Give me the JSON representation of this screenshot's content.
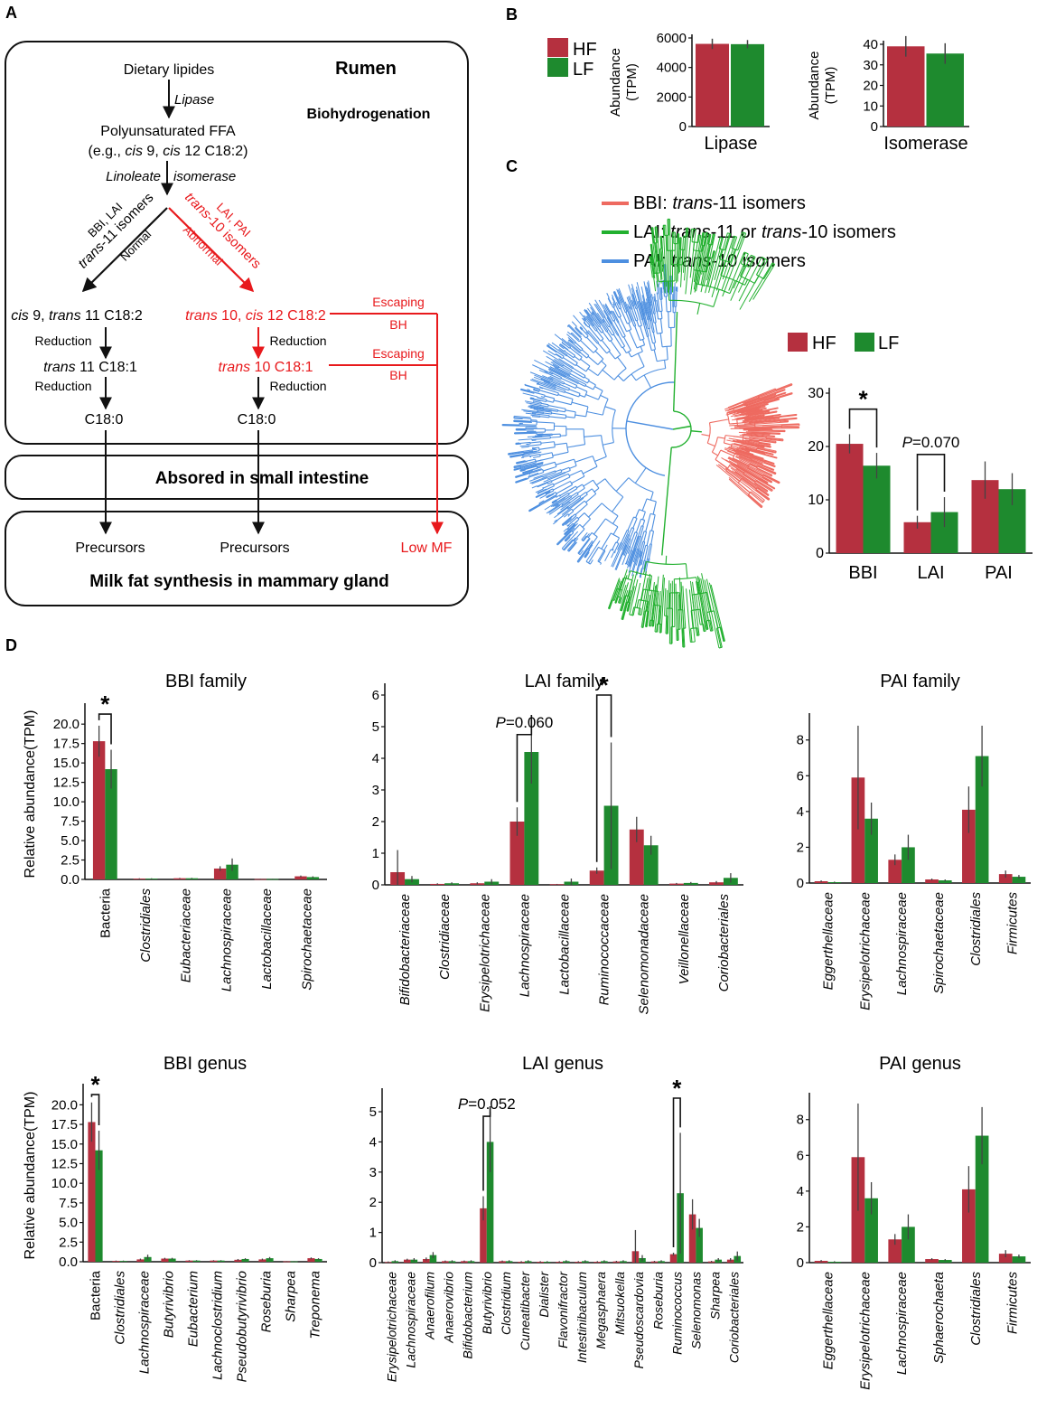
{
  "colors": {
    "hf": "#B5303F",
    "lf": "#1E8A2E",
    "red": "#E8191C",
    "black": "#111111",
    "bbi": "#EE6A60",
    "lai": "#22B02F",
    "pai": "#4D8FE0"
  },
  "panelA": {
    "label": "A",
    "rumen": "Rumen",
    "biohydrogenation": "Biohydrogenation",
    "dietary": "Dietary lipides",
    "lipase": "Lipase",
    "pufa": "Polyunsaturated FFA",
    "eg_pre": "(e.g., ",
    "eg_cis9": "cis",
    "eg_mid": " 9, ",
    "eg_cis12": "cis",
    "eg_post": " 12 C18:2)",
    "lin": "Linoleate",
    "iso": "isomerase",
    "bbi_lai": "BBI, LAI",
    "t11_trans": "trans",
    "t11_rest": "-11 isomers",
    "normal": "Normal",
    "lai_pai": "LAI, PAI",
    "t10_trans": "trans",
    "t10_rest": "-10 isomers",
    "abnormal": "Abnormal",
    "left_cis": "cis",
    "left_9": " 9, ",
    "left_trans": "trans",
    "left_11": " 11 C18:2",
    "right_trans": "trans",
    "right_10": " 10, ",
    "right_cis": "cis",
    "right_12": " 12 C18:2",
    "escaping1": "Escaping",
    "bh1": "BH",
    "escaping2": "Escaping",
    "bh2": "BH",
    "reduction1": "Reduction",
    "reduction2": "Reduction",
    "reduction3": "Reduction",
    "reduction4": "Reduction",
    "lt11_trans": "trans",
    "lt11_rest": " 11 C18:1",
    "rt10_trans": "trans",
    "rt10_rest": " 10 C18:1",
    "c180_left": "C18:0",
    "c180_right": "C18:0",
    "absorbed": "Absored in small intestine",
    "precursors1": "Precursors",
    "precursors2": "Precursors",
    "lowmf": "Low MF",
    "milkfat": "Milk fat synthesis in mammary gland"
  },
  "panelB": {
    "label": "B",
    "legend": [
      "HF",
      "LF"
    ],
    "charts": [
      {
        "ylabel1": "Abundance",
        "ylabel2": "(TPM)",
        "xlabel": "Lipase",
        "yticks": [
          0,
          2000,
          4000,
          6000
        ],
        "ymax": 6000,
        "values": [
          5600,
          5580
        ],
        "errors": [
          350,
          280
        ]
      },
      {
        "ylabel1": "Abundance",
        "ylabel2": "(TPM)",
        "xlabel": "Isomerase",
        "yticks": [
          0,
          10,
          20,
          30,
          40
        ],
        "ymax": 40,
        "values": [
          39,
          35.5
        ],
        "errors": [
          5,
          5
        ]
      }
    ]
  },
  "panelC": {
    "label": "C",
    "legend": [
      {
        "key": "BBI",
        "sep": ": ",
        "t1": "trans",
        "t2": "-11 isomers",
        "t3": "",
        "t4": "",
        "color": "#EE6A60"
      },
      {
        "key": "LAI",
        "sep": ": ",
        "t1": "trans",
        "t2": "-11 or ",
        "t3": "trans",
        "t4": "-10 isomers",
        "color": "#22B02F"
      },
      {
        "key": "PAI",
        "sep": ": ",
        "t1": "trans",
        "t2": "-10 isomers",
        "t3": "",
        "t4": "",
        "color": "#4D8FE0"
      }
    ],
    "bar_legend": [
      "HF",
      "LF"
    ]
  },
  "chart_data": [
    {
      "type": "bar",
      "panel": "B",
      "title": "",
      "categories": [
        "Lipase"
      ],
      "series": [
        {
          "name": "HF",
          "values": [
            5600
          ]
        },
        {
          "name": "LF",
          "values": [
            5580
          ]
        }
      ],
      "ylabel": "Abundance (TPM)",
      "ylim": [
        0,
        6000
      ]
    },
    {
      "type": "bar",
      "panel": "B",
      "title": "",
      "categories": [
        "Isomerase"
      ],
      "series": [
        {
          "name": "HF",
          "values": [
            39
          ]
        },
        {
          "name": "LF",
          "values": [
            35.5
          ]
        }
      ],
      "ylabel": "Abundance (TPM)",
      "ylim": [
        0,
        40
      ]
    },
    {
      "type": "bar",
      "panel": "C",
      "title": "",
      "categories": [
        "BBI",
        "LAI",
        "PAI"
      ],
      "series": [
        {
          "name": "HF",
          "values": [
            20.5,
            5.8,
            13.7
          ]
        },
        {
          "name": "LF",
          "values": [
            16.4,
            7.7,
            12
          ]
        }
      ],
      "errors": {
        "HF": [
          1.8,
          1.2,
          3.5
        ],
        "LF": [
          2.4,
          2.8,
          3
        ]
      },
      "yticks": [
        0,
        10,
        20,
        30
      ],
      "ylim": [
        0,
        30
      ],
      "annotations": [
        {
          "label": "*",
          "between": "BBI"
        },
        {
          "label": "=0.070",
          "prefix": "P",
          "between": "LAI"
        }
      ]
    },
    {
      "type": "bar",
      "panel": "D",
      "title": "BBI family",
      "ylabel": "Relative abundance(TPM)",
      "yticks": [
        0.0,
        2.5,
        5.0,
        7.5,
        10.0,
        12.5,
        15.0,
        17.5,
        20.0
      ],
      "ylim": [
        0,
        22
      ],
      "categories": [
        "Bacteria",
        "Clostridiales",
        "Eubacteriaceae",
        "Lachnospiraceae",
        "Lactobacillaceae",
        "Spirochaetaceae"
      ],
      "italic": [
        false,
        true,
        true,
        true,
        true,
        true
      ],
      "series": [
        {
          "name": "HF",
          "values": [
            17.8,
            0.1,
            0.15,
            1.4,
            0.05,
            0.4
          ]
        },
        {
          "name": "LF",
          "values": [
            14.2,
            0.1,
            0.15,
            1.9,
            0.05,
            0.3
          ]
        }
      ],
      "errors": {
        "HF": [
          2.0,
          0.05,
          0.05,
          0.3,
          0.02,
          0.1
        ],
        "LF": [
          2.5,
          0.05,
          0.05,
          0.8,
          0.02,
          0.1
        ]
      },
      "annotations": [
        {
          "label": "*",
          "category": 0
        }
      ]
    },
    {
      "type": "bar",
      "panel": "D",
      "title": "LAI family",
      "ylabel": "",
      "yticks": [
        0,
        1,
        2,
        3,
        4,
        5,
        6
      ],
      "ylim": [
        0,
        6.2
      ],
      "categories": [
        "Bifidobacteriaceae",
        "Clostridiaceae",
        "Erysipelotrichaceae",
        "Lachnospiraceae",
        "Lactobacillaceae",
        "Ruminococcaceae",
        "Selenomonadaceae",
        "Veillonellaceae",
        "Coriobacteriales"
      ],
      "italic": [
        true,
        true,
        true,
        true,
        true,
        true,
        true,
        true,
        true
      ],
      "series": [
        {
          "name": "HF",
          "values": [
            0.4,
            0.03,
            0.05,
            2.0,
            0.02,
            0.45,
            1.75,
            0.04,
            0.08
          ]
        },
        {
          "name": "LF",
          "values": [
            0.18,
            0.05,
            0.1,
            4.2,
            0.1,
            2.5,
            1.25,
            0.06,
            0.22
          ]
        }
      ],
      "errors": {
        "HF": [
          0.7,
          0.02,
          0.03,
          0.45,
          0.01,
          0.1,
          0.4,
          0.02,
          0.04
        ],
        "LF": [
          0.1,
          0.03,
          0.08,
          1.0,
          0.1,
          2.0,
          0.3,
          0.03,
          0.15
        ]
      },
      "annotations": [
        {
          "label": "=0.060",
          "prefix": "P",
          "category": 3
        },
        {
          "label": "*",
          "category": 5
        }
      ]
    },
    {
      "type": "bar",
      "panel": "D",
      "title": "PAI family",
      "ylabel": "",
      "yticks": [
        0,
        2,
        4,
        6,
        8
      ],
      "ylim": [
        0,
        9.2
      ],
      "categories": [
        "Eggerthellaceae",
        "Erysipelotrichaceae",
        "Lachnospiraceae",
        "Spirochaetaceae",
        "Clostridiales",
        "Firmicutes"
      ],
      "italic": [
        true,
        true,
        true,
        true,
        true,
        true
      ],
      "series": [
        {
          "name": "HF",
          "values": [
            0.1,
            5.9,
            1.3,
            0.2,
            4.1,
            0.5
          ]
        },
        {
          "name": "LF",
          "values": [
            0.05,
            3.6,
            2.0,
            0.15,
            7.1,
            0.35
          ]
        }
      ],
      "errors": {
        "HF": [
          0.05,
          2.9,
          0.3,
          0.05,
          1.3,
          0.2
        ],
        "LF": [
          0.03,
          0.9,
          0.7,
          0.05,
          1.7,
          0.1
        ]
      },
      "annotations": []
    },
    {
      "type": "bar",
      "panel": "D",
      "title": "BBI genus",
      "ylabel": "Relative abundance(TPM)",
      "yticks": [
        0.0,
        2.5,
        5.0,
        7.5,
        10.0,
        12.5,
        15.0,
        17.5,
        20.0
      ],
      "ylim": [
        0,
        22
      ],
      "categories": [
        "Bacteria",
        "Clostridiales",
        "Lachnospiraceae",
        "Butyrivibrio",
        "Eubacterium",
        "Lachnoclostridium",
        "Pseudobutyrivibrio",
        "Roseburia",
        "Sharpea",
        "Treponema"
      ],
      "italic": [
        false,
        true,
        true,
        true,
        true,
        true,
        true,
        true,
        true,
        true
      ],
      "series": [
        {
          "name": "HF",
          "values": [
            17.8,
            0.1,
            0.3,
            0.4,
            0.15,
            0.15,
            0.25,
            0.3,
            0.05,
            0.45
          ]
        },
        {
          "name": "LF",
          "values": [
            14.2,
            0.1,
            0.6,
            0.4,
            0.15,
            0.15,
            0.35,
            0.45,
            0.05,
            0.35
          ]
        }
      ],
      "errors": {
        "HF": [
          2.5,
          0.05,
          0.1,
          0.1,
          0.05,
          0.05,
          0.1,
          0.1,
          0.02,
          0.1
        ],
        "LF": [
          2.5,
          0.05,
          0.3,
          0.1,
          0.05,
          0.05,
          0.1,
          0.15,
          0.02,
          0.1
        ]
      },
      "annotations": [
        {
          "label": "*",
          "category": 0
        }
      ]
    },
    {
      "type": "bar",
      "panel": "D",
      "title": "LAI genus",
      "ylabel": "",
      "yticks": [
        0,
        1,
        2,
        3,
        4,
        5
      ],
      "ylim": [
        0,
        5.6
      ],
      "categories": [
        "Erysipelotrichaceae",
        "Lachnospiraceae",
        "Anaerofilum",
        "Anaerovibrio",
        "Bifidobacterium",
        "Butyrivibrio",
        "Clostridium",
        "Cuneatibacter",
        "Dialister",
        "Flavonifractor",
        "Intestinibaculum",
        "Megasphaera",
        "Mitsuokella",
        "Pseudoscardovia",
        "Roseburia",
        "Ruminococcus",
        "Selenomonas",
        "Sharpea",
        "Coriobacteriales"
      ],
      "italic": [
        true,
        true,
        true,
        true,
        true,
        true,
        true,
        true,
        true,
        true,
        true,
        true,
        true,
        true,
        true,
        true,
        true,
        true,
        true
      ],
      "series": [
        {
          "name": "HF",
          "values": [
            0.02,
            0.1,
            0.12,
            0.05,
            0.05,
            1.8,
            0.05,
            0.03,
            0.03,
            0.03,
            0.03,
            0.03,
            0.04,
            0.38,
            0.04,
            0.28,
            1.6,
            0.04,
            0.1
          ]
        },
        {
          "name": "LF",
          "values": [
            0.05,
            0.1,
            0.25,
            0.05,
            0.05,
            4.0,
            0.05,
            0.05,
            0.03,
            0.05,
            0.05,
            0.05,
            0.05,
            0.15,
            0.05,
            2.3,
            1.15,
            0.1,
            0.22
          ]
        }
      ],
      "errors": {
        "HF": [
          0.02,
          0.03,
          0.05,
          0.02,
          0.02,
          0.4,
          0.02,
          0.02,
          0.02,
          0.02,
          0.02,
          0.02,
          0.02,
          0.7,
          0.02,
          0.05,
          0.5,
          0.02,
          0.05
        ],
        "LF": [
          0.03,
          0.05,
          0.1,
          0.03,
          0.03,
          1.0,
          0.03,
          0.03,
          0.02,
          0.03,
          0.03,
          0.03,
          0.03,
          0.1,
          0.03,
          2.0,
          0.3,
          0.05,
          0.15
        ]
      },
      "annotations": [
        {
          "label": "=0.052",
          "prefix": "P",
          "category": 5
        },
        {
          "label": "*",
          "category": 15
        }
      ]
    },
    {
      "type": "bar",
      "panel": "D",
      "title": "PAI genus",
      "ylabel": "",
      "yticks": [
        0,
        2,
        4,
        6,
        8
      ],
      "ylim": [
        0,
        9.2
      ],
      "categories": [
        "Eggerthellaceae",
        "Erysipelotrichaceae",
        "Lachnospiraceae",
        "Sphaerochaeta",
        "Clostridiales",
        "Firmicutes"
      ],
      "italic": [
        true,
        true,
        true,
        true,
        true,
        true
      ],
      "series": [
        {
          "name": "HF",
          "values": [
            0.1,
            5.9,
            1.3,
            0.2,
            4.1,
            0.5
          ]
        },
        {
          "name": "LF",
          "values": [
            0.05,
            3.6,
            2.0,
            0.15,
            7.1,
            0.35
          ]
        }
      ],
      "errors": {
        "HF": [
          0.05,
          3.0,
          0.3,
          0.05,
          1.3,
          0.2
        ],
        "LF": [
          0.03,
          0.9,
          0.7,
          0.05,
          1.6,
          0.1
        ]
      },
      "annotations": []
    }
  ],
  "panelD": {
    "label": "D"
  }
}
